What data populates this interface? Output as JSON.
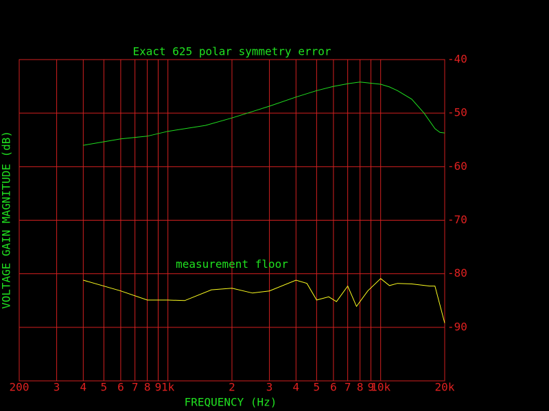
{
  "chart_data": {
    "type": "line",
    "x_label": "FREQUENCY (Hz)",
    "y_label": "VOLTAGE GAIN MAGNITUDE (dB)",
    "log_x": true,
    "grid": true,
    "grid_color": "#d42020",
    "background": "#000000",
    "xlim": [
      200,
      20000
    ],
    "xticks": [
      200,
      {
        "value": 300,
        "label": "3"
      },
      {
        "value": 400,
        "label": "4"
      },
      {
        "value": 500,
        "label": "5"
      },
      {
        "value": 600,
        "label": "6"
      },
      {
        "value": 700,
        "label": "7"
      },
      {
        "value": 800,
        "label": "8"
      },
      {
        "value": 900,
        "label": "9"
      },
      {
        "value": 1000,
        "label": "1k"
      },
      {
        "value": 2000,
        "label": "2"
      },
      {
        "value": 3000,
        "label": "3"
      },
      {
        "value": 4000,
        "label": "4"
      },
      {
        "value": 5000,
        "label": "5"
      },
      {
        "value": 6000,
        "label": "6"
      },
      {
        "value": 7000,
        "label": "7"
      },
      {
        "value": 8000,
        "label": "8"
      },
      {
        "value": 9000,
        "label": "9"
      },
      {
        "value": 10000,
        "label": "10k"
      },
      {
        "value": 20000,
        "label": "20k"
      }
    ],
    "ylim": [
      -100,
      -40
    ],
    "yticks": [
      -40,
      -50,
      -60,
      -70,
      -80,
      -90
    ],
    "series": [
      {
        "name": "Exact 625 polar symmetry error",
        "color": "#20e020",
        "x": [
          400,
          600,
          800,
          1000,
          1500,
          2000,
          3000,
          4000,
          5000,
          6000,
          7000,
          8000,
          10000,
          11000,
          12000,
          14000,
          16000,
          18000,
          19000,
          20000
        ],
        "values": [
          -56.0,
          -54.8,
          -54.3,
          -53.4,
          -52.3,
          -50.9,
          -48.7,
          -47.0,
          -45.8,
          -45.0,
          -44.5,
          -44.2,
          -44.6,
          -45.1,
          -45.8,
          -47.4,
          -50.0,
          -52.9,
          -53.6,
          -53.7
        ]
      },
      {
        "name": "measurement floor",
        "color": "#ffff20",
        "x": [
          400,
          600,
          800,
          1000,
          1200,
          1600,
          2000,
          2500,
          3000,
          4000,
          4500,
          5000,
          5700,
          6200,
          7000,
          7700,
          8700,
          10000,
          11000,
          12000,
          14000,
          17000,
          18000,
          20000
        ],
        "values": [
          -81.2,
          -83.2,
          -84.9,
          -84.9,
          -85.0,
          -83.0,
          -82.7,
          -83.6,
          -83.2,
          -81.2,
          -81.8,
          -84.9,
          -84.3,
          -85.2,
          -82.3,
          -86.1,
          -83.2,
          -80.9,
          -82.2,
          -81.8,
          -81.9,
          -82.3,
          -82.3,
          -89.2
        ]
      }
    ]
  }
}
